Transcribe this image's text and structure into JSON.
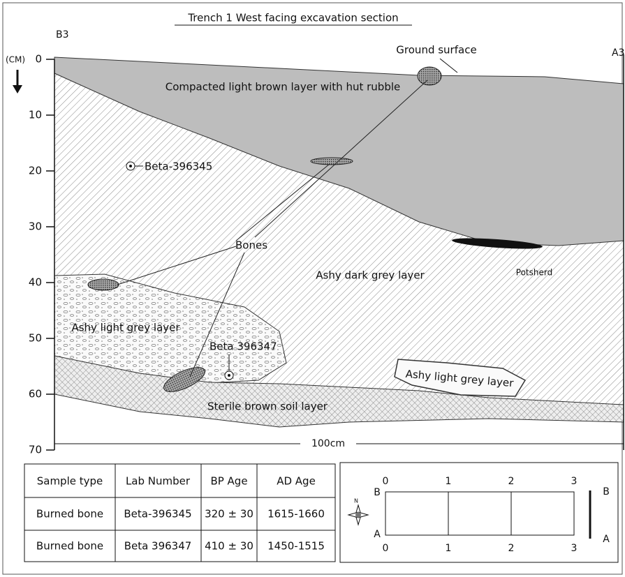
{
  "title": "Trench 1 West facing excavation section",
  "section": {
    "left_label": "B3",
    "right_label": "A3",
    "depth_unit": "(CM)",
    "depth_ticks": [
      0,
      10,
      20,
      30,
      40,
      50,
      60,
      70
    ],
    "width_label": "100cm",
    "ground_surface": "Ground surface",
    "layers": {
      "top": "Compacted light brown layer with hut rubble",
      "dark": "Ashy dark grey layer",
      "light_left": "Ashy light grey layer",
      "light_right": "Ashy light grey layer",
      "sterile": "Sterile brown soil layer"
    },
    "bones": "Bones",
    "potsherd": "Potsherd",
    "samples": [
      "Beta-396345",
      "Beta 396347"
    ]
  },
  "table": {
    "header": [
      "Sample type",
      "Lab Number",
      "BP Age",
      "AD Age"
    ],
    "rows": [
      [
        "Burned bone",
        "Beta-396345",
        "320 ± 30",
        "1615-1660"
      ],
      [
        "Burned bone",
        "Beta 396347",
        "410 ± 30",
        "1450-1515"
      ]
    ]
  },
  "plan": {
    "top_ticks": [
      0,
      1,
      2,
      3
    ],
    "bottom_ticks": [
      0,
      1,
      2,
      3
    ],
    "left_top": "B",
    "left_bottom": "A",
    "right_top": "B",
    "right_bottom": "A",
    "compass": "N"
  }
}
